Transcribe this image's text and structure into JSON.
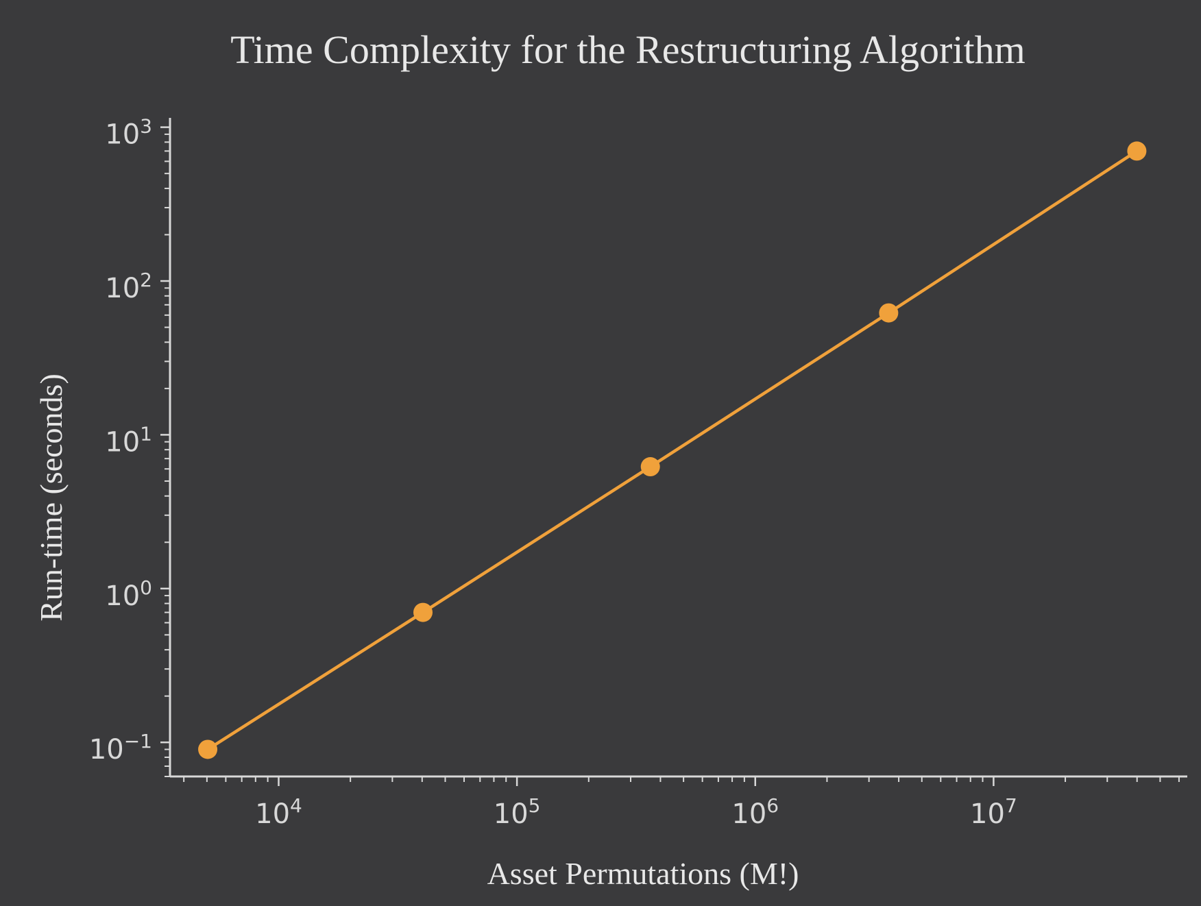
{
  "chart_data": {
    "type": "line",
    "title": "Time Complexity for the Restructuring Algorithm",
    "xlabel": "Asset Permutations (M!)",
    "ylabel": "Run-time (seconds)",
    "xscale": "log",
    "yscale": "log",
    "xlim": [
      3500,
      65000000
    ],
    "ylim": [
      0.06,
      1150
    ],
    "grid": false,
    "legend": "none",
    "x_ticks": [
      {
        "value": 10000,
        "base": "10",
        "exp": "4"
      },
      {
        "value": 100000,
        "base": "10",
        "exp": "5"
      },
      {
        "value": 1000000,
        "base": "10",
        "exp": "6"
      },
      {
        "value": 10000000,
        "base": "10",
        "exp": "7"
      }
    ],
    "y_ticks": [
      {
        "value": 0.1,
        "base": "10",
        "exp": "−1"
      },
      {
        "value": 1,
        "base": "10",
        "exp": "0"
      },
      {
        "value": 10,
        "base": "10",
        "exp": "1"
      },
      {
        "value": 100,
        "base": "10",
        "exp": "2"
      },
      {
        "value": 1000,
        "base": "10",
        "exp": "3"
      }
    ],
    "series": [
      {
        "color": "#f0a13b",
        "x": [
          5040,
          40320,
          362880,
          3628800,
          39916800
        ],
        "y": [
          0.09,
          0.7,
          6.2,
          62,
          700
        ]
      }
    ]
  }
}
